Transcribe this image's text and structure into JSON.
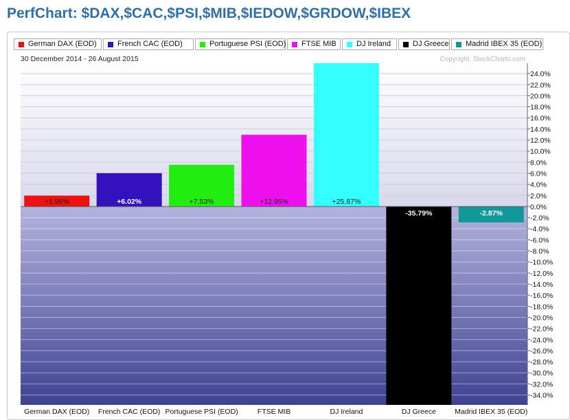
{
  "title": "PerfChart: $DAX,$CAC,$PSI,$MIB,$IEDOW,$GRDOW,$IBEX",
  "date_range": "30 December 2014 - 26 August 2015",
  "copyright": "Copyright, StockCharts.com",
  "colors": {
    "upper_bg_top": "#ffffff",
    "upper_bg_bottom": "#d8d8ec",
    "lower_bg_top": "#b4b4de",
    "lower_bg_bottom": "#3f4292",
    "grid": "#cfcfcf",
    "title": "#2f6fa7"
  },
  "chart_data": {
    "type": "bar",
    "categories": [
      "German DAX (EOD)",
      "French CAC (EOD)",
      "Portuguese PSI (EOD)",
      "FTSE MIB",
      "DJ Ireland",
      "DJ Greece",
      "Madrid IBEX 35 (EOD)"
    ],
    "values": [
      1.96,
      6.02,
      7.53,
      12.95,
      25.87,
      -35.79,
      -2.87
    ],
    "value_labels": [
      "+1.96%",
      "+6.02%",
      "+7.53%",
      "+12.95%",
      "+25.87%",
      "-35.79%",
      "-2.87%"
    ],
    "colors": [
      "#ee1111",
      "#3311bb",
      "#22ee11",
      "#ee11ee",
      "#33ffff",
      "#000000",
      "#119999"
    ],
    "legend": [
      "German DAX (EOD)",
      "French CAC (EOD)",
      "Portuguese PSI (EOD)",
      "FTSE MIB",
      "DJ Ireland",
      "DJ Greece",
      "Madrid IBEX 35 (EOD)"
    ],
    "y_ticks": [
      24,
      22,
      20,
      18,
      16,
      14,
      12,
      10,
      8,
      6,
      4,
      2,
      0,
      -2,
      -4,
      -6,
      -8,
      -10,
      -12,
      -14,
      -16,
      -18,
      -20,
      -22,
      -24,
      -26,
      -28,
      -30,
      -32,
      -34
    ],
    "y_tick_labels": [
      "24.0%",
      "22.0%",
      "20.0%",
      "18.0%",
      "16.0%",
      "14.0%",
      "12.0%",
      "10.0%",
      "8.0%",
      "6.0%",
      "4.0%",
      "2.0%",
      "0.0%",
      "-2.0%",
      "-4.0%",
      "-6.0%",
      "-8.0%",
      "-10.0%",
      "-12.0%",
      "-14.0%",
      "-16.0%",
      "-18.0%",
      "-20.0%",
      "-22.0%",
      "-24.0%",
      "-26.0%",
      "-28.0%",
      "-30.0%",
      "-32.0%",
      "-34.0%"
    ],
    "ylim": [
      -35.79,
      25.87
    ],
    "grid": true,
    "legend_position": "top"
  }
}
